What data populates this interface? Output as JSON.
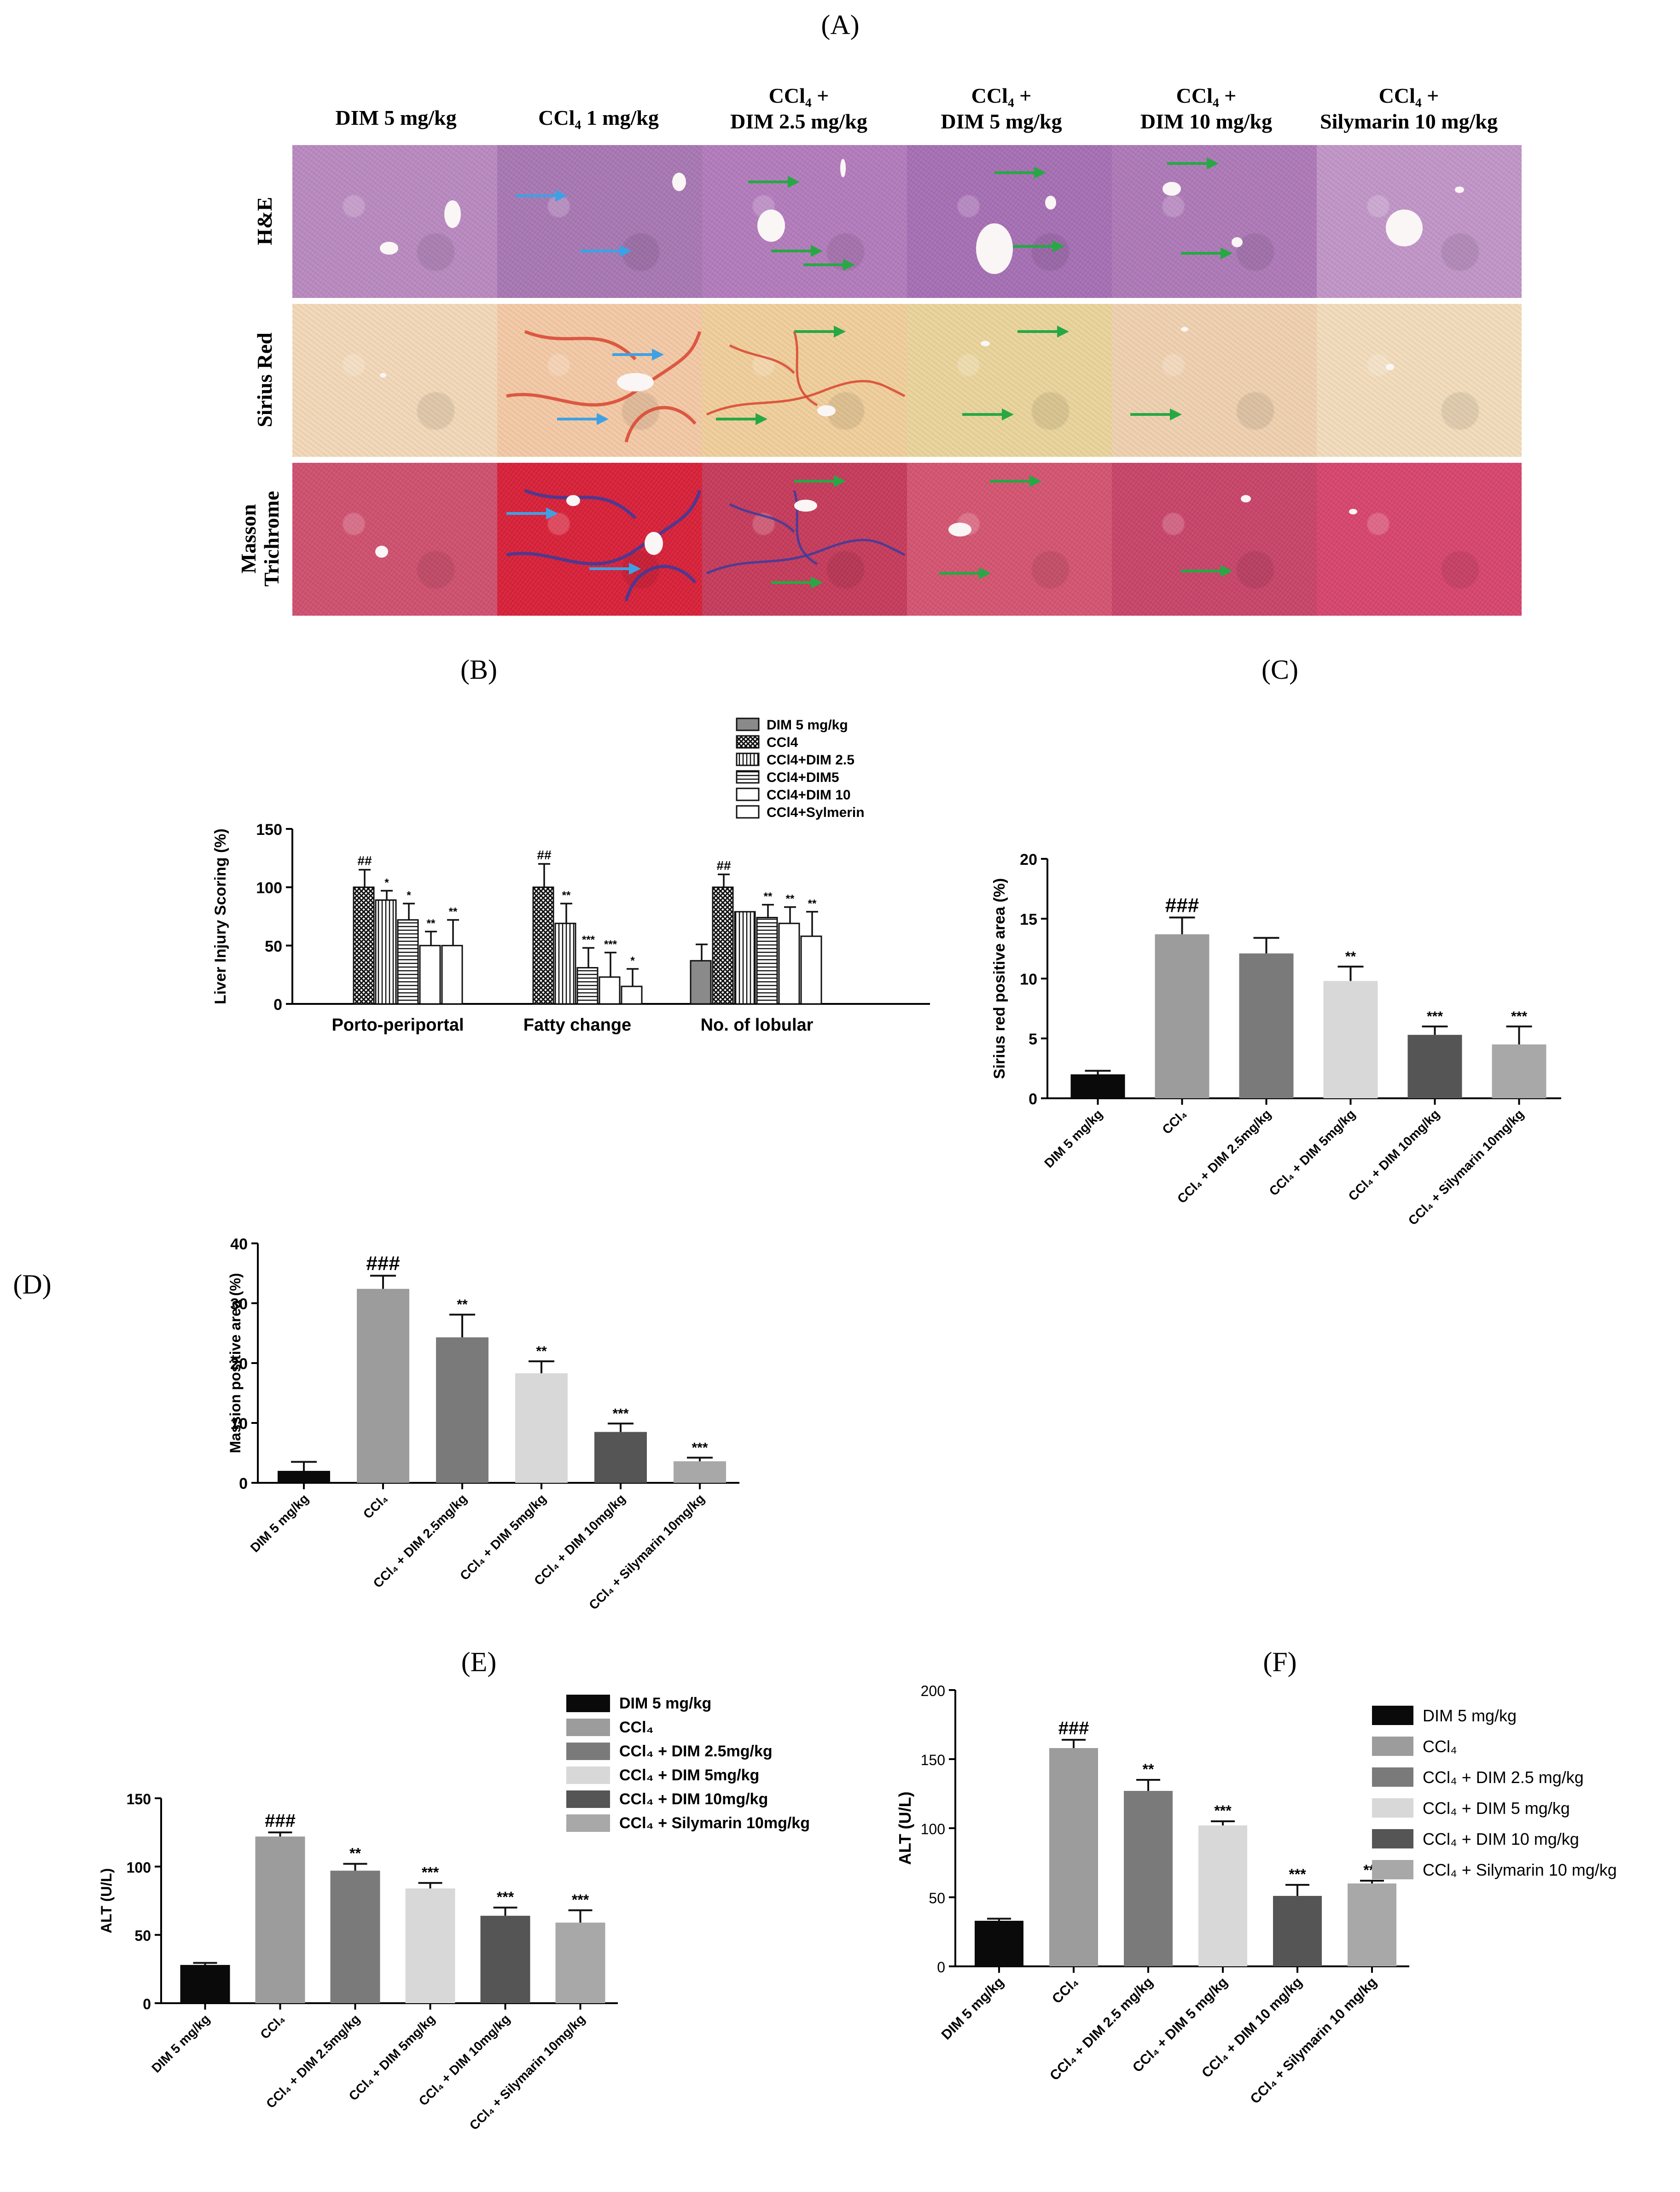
{
  "panel_labels": {
    "A": "(A)",
    "B": "(B)",
    "C": "(C)",
    "D": "(D)",
    "E": "(E)",
    "F": "(F)"
  },
  "histology": {
    "columns": [
      {
        "line1": "DIM 5 mg/kg",
        "line2": ""
      },
      {
        "line1": "CCl₄ 1 mg/kg",
        "line2": ""
      },
      {
        "line1": "CCl₄ +",
        "line2": "DIM 2.5 mg/kg"
      },
      {
        "line1": "CCl₄ +",
        "line2": "DIM 5 mg/kg"
      },
      {
        "line1": "CCl₄ +",
        "line2": "DIM 10 mg/kg"
      },
      {
        "line1": "CCl₄ +",
        "line2": "Silymarin 10 mg/kg"
      }
    ],
    "rows": [
      {
        "line1": "H&E",
        "line2": "",
        "color": "#b77fbe",
        "dark": "#8e4f9a"
      },
      {
        "line1": "Sirius Red",
        "line2": "",
        "color": "#efcfa9",
        "dark": "#d8442f"
      },
      {
        "line1": "Masson",
        "line2": "Trichrome",
        "color": "#cf3a61",
        "dark": "#3a3b9e"
      }
    ],
    "arrow_colors": {
      "injury": "#3ea1e4",
      "recovery": "#27a844"
    }
  },
  "colors": {
    "black": "#0a0a0a",
    "mid_gray": "#9c9c9c",
    "dark_gray": "#7a7a7a",
    "light_gray": "#d8d8d8",
    "charcoal": "#555555",
    "silver": "#a8a8a8"
  },
  "chart_data": [
    {
      "id": "B",
      "type": "bar",
      "ylabel": "Liver Injury Scoring (%)",
      "ylim": [
        0,
        150
      ],
      "yticks": [
        "0",
        "50",
        "100",
        "150"
      ],
      "categories": [
        "Porto-periportal",
        "Fatty change",
        "No. of lobular"
      ],
      "series": [
        {
          "name": "DIM 5 mg/kg",
          "pattern": "solid",
          "values": [
            null,
            null,
            37
          ],
          "errors": [
            null,
            null,
            14
          ],
          "sig": [
            "",
            "",
            ""
          ]
        },
        {
          "name": "CCl4",
          "pattern": "cross",
          "values": [
            100,
            100,
            100
          ],
          "errors": [
            15,
            20,
            11
          ],
          "sig": [
            "##",
            "##",
            "##"
          ]
        },
        {
          "name": "CCl4+DIM 2.5",
          "pattern": "vlines",
          "values": [
            89,
            69,
            79
          ],
          "errors": [
            8,
            17,
            0
          ],
          "sig": [
            "*",
            "**",
            ""
          ]
        },
        {
          "name": "CCl4+DIM5",
          "pattern": "hlines",
          "values": [
            72,
            31,
            74
          ],
          "errors": [
            14,
            17,
            11
          ],
          "sig": [
            "*",
            "***",
            "**"
          ]
        },
        {
          "name": "CCl4+DIM 10",
          "pattern": "hollow",
          "values": [
            50,
            23,
            69
          ],
          "errors": [
            12,
            21,
            14
          ],
          "sig": [
            "**",
            "***",
            "**"
          ]
        },
        {
          "name": "CCl4+Sylmerin",
          "pattern": "hollow",
          "values": [
            50,
            15,
            58
          ],
          "errors": [
            22,
            15,
            21
          ],
          "sig": [
            "**",
            "*",
            "**"
          ]
        }
      ],
      "legend": "top-right"
    },
    {
      "id": "C",
      "type": "bar",
      "ylabel": "Sirius red positive area (%)",
      "ylim": [
        0,
        20
      ],
      "yticks": [
        "0",
        "5",
        "10",
        "15",
        "20"
      ],
      "categories": [
        "DIM 5 mg/kg",
        "CCl₄",
        "CCl₄ + DIM 2.5mg/kg",
        "CCl₄ + DIM 5mg/kg",
        "CCl₄ + DIM 10mg/kg",
        "CCl₄ + Silymarin 10mg/kg"
      ],
      "values": [
        2.0,
        13.7,
        12.1,
        9.8,
        5.3,
        4.5
      ],
      "errors": [
        0.3,
        1.4,
        1.3,
        1.2,
        0.7,
        1.5
      ],
      "sig": [
        "",
        "###",
        "",
        "**",
        "***",
        "***"
      ]
    },
    {
      "id": "D",
      "type": "bar",
      "ylabel": "Massion positive area (%)",
      "ylim": [
        0,
        40
      ],
      "yticks": [
        "0",
        "10",
        "20",
        "30",
        "40"
      ],
      "categories": [
        "DIM 5 mg/kg",
        "CCl₄",
        "CCl₄ + DIM 2.5mg/kg",
        "CCl₄ + DIM 5mg/kg",
        "CCl₄ + DIM 10mg/kg",
        "CCl₄ + Silymarin 10mg/kg"
      ],
      "values": [
        2.0,
        32.4,
        24.3,
        18.3,
        8.5,
        3.6
      ],
      "errors": [
        1.5,
        2.2,
        3.8,
        2.0,
        1.4,
        0.6
      ],
      "sig": [
        "",
        "###",
        "**",
        "**",
        "***",
        "***"
      ]
    },
    {
      "id": "E",
      "type": "bar",
      "ylabel": "ALT (U/L)",
      "ylim": [
        0,
        150
      ],
      "yticks": [
        "0",
        "50",
        "100",
        "150"
      ],
      "categories": [
        "DIM 5 mg/kg",
        "CCl₄",
        "CCl₄ + DIM 2.5mg/kg",
        "CCl₄ + DIM 5mg/kg",
        "CCl₄ + DIM 10mg/kg",
        "CCl₄ + Silymarin 10mg/kg"
      ],
      "values": [
        28,
        122,
        97,
        84,
        64,
        59
      ],
      "errors": [
        1.5,
        3,
        5,
        4,
        6,
        9
      ],
      "sig": [
        "",
        "###",
        "**",
        "***",
        "***",
        "***"
      ],
      "legend": [
        "DIM 5 mg/kg",
        "CCl₄",
        "CCl₄ + DIM 2.5mg/kg",
        "CCl₄ + DIM 5mg/kg",
        "CCl₄ + DIM 10mg/kg",
        "CCl₄ + Silymarin 10mg/kg"
      ]
    },
    {
      "id": "F",
      "type": "bar",
      "ylabel": "ALT (U/L)",
      "ylim": [
        0,
        200
      ],
      "yticks": [
        "0",
        "50",
        "100",
        "150",
        "200"
      ],
      "categories": [
        "DIM 5 mg/kg",
        "CCl₄",
        "CCl₄ + DIM 2.5 mg/kg",
        "CCl₄ + DIM 5 mg/kg",
        "CCl₄ + DIM 10 mg/kg",
        "CCl₄ + Silymarin 10 mg/kg"
      ],
      "values": [
        33,
        158,
        127,
        102,
        51,
        60
      ],
      "errors": [
        1.5,
        6,
        8,
        3,
        8,
        2
      ],
      "sig": [
        "",
        "###",
        "**",
        "***",
        "***",
        "***"
      ],
      "legend": [
        "DIM 5 mg/kg",
        "CCl₄",
        "CCl₄ + DIM 2.5 mg/kg",
        "CCl₄ + DIM 5 mg/kg",
        "CCl₄ + DIM 10 mg/kg",
        "CCl₄ + Silymarin 10 mg/kg"
      ]
    }
  ]
}
